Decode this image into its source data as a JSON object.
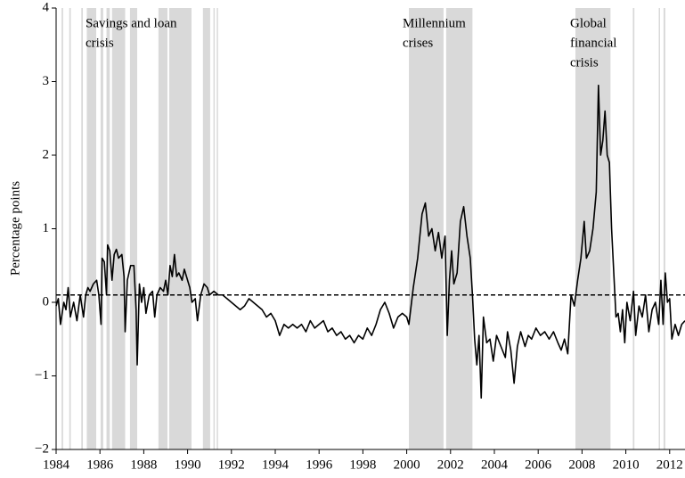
{
  "chart_data": {
    "type": "line",
    "y_label": "Percentage points",
    "annotations": [
      {
        "lines": [
          "Savings and loan",
          "crisis"
        ]
      },
      {
        "lines": [
          "Millennium",
          "crises"
        ]
      },
      {
        "lines": [
          "Global",
          "financial",
          "crisis"
        ]
      }
    ],
    "xlim": [
      1984,
      2012.7
    ],
    "xticks": [
      1984,
      1986,
      1988,
      1990,
      1992,
      1994,
      1996,
      1998,
      2000,
      2002,
      2004,
      2006,
      2008,
      2010,
      2012
    ],
    "ylim": [
      -2,
      4
    ],
    "yticks": [
      {
        "value": -2,
        "label": "−2"
      },
      {
        "value": -1,
        "label": "−1"
      },
      0,
      1,
      2,
      3,
      4
    ],
    "reference_line": 0.1,
    "shade_color": "#d9d9d9",
    "shaded_periods": [
      [
        1984.25,
        1984.32
      ],
      [
        1984.6,
        1984.67
      ],
      [
        1985.15,
        1985.22
      ],
      [
        1985.4,
        1985.83
      ],
      [
        1986.03,
        1986.15
      ],
      [
        1986.3,
        1986.45
      ],
      [
        1986.55,
        1987.15
      ],
      [
        1987.37,
        1987.7
      ],
      [
        1988.67,
        1989.08
      ],
      [
        1989.16,
        1990.18
      ],
      [
        1990.7,
        1991.03
      ],
      [
        1991.18,
        1991.24
      ],
      [
        1991.33,
        1991.39
      ],
      [
        2000.1,
        2001.68
      ],
      [
        2001.8,
        2003.0
      ],
      [
        2007.7,
        2009.3
      ],
      [
        2010.32,
        2010.39
      ],
      [
        2011.5,
        2011.56
      ],
      [
        2011.72,
        2011.8
      ]
    ],
    "series": [
      {
        "color": "#000000",
        "x": [
          1984.0,
          1984.1,
          1984.2,
          1984.35,
          1984.45,
          1984.55,
          1984.65,
          1984.8,
          1984.95,
          1985.1,
          1985.25,
          1985.35,
          1985.45,
          1985.55,
          1985.7,
          1985.85,
          1985.95,
          1986.05,
          1986.1,
          1986.2,
          1986.3,
          1986.35,
          1986.45,
          1986.55,
          1986.65,
          1986.75,
          1986.85,
          1987.0,
          1987.1,
          1987.15,
          1987.25,
          1987.4,
          1987.55,
          1987.65,
          1987.7,
          1987.8,
          1987.9,
          1988.0,
          1988.1,
          1988.25,
          1988.4,
          1988.5,
          1988.6,
          1988.75,
          1988.9,
          1989.0,
          1989.1,
          1989.2,
          1989.3,
          1989.4,
          1989.5,
          1989.6,
          1989.75,
          1989.85,
          1990.0,
          1990.1,
          1990.2,
          1990.35,
          1990.45,
          1990.6,
          1990.75,
          1990.9,
          1991.0,
          1991.2,
          1991.4,
          1991.6,
          1991.8,
          1992.0,
          1992.2,
          1992.4,
          1992.6,
          1992.8,
          1993.0,
          1993.2,
          1993.4,
          1993.6,
          1993.8,
          1994.0,
          1994.2,
          1994.4,
          1994.6,
          1994.8,
          1995.0,
          1995.2,
          1995.4,
          1995.6,
          1995.8,
          1996.0,
          1996.2,
          1996.4,
          1996.6,
          1996.8,
          1997.0,
          1997.2,
          1997.4,
          1997.6,
          1997.8,
          1998.0,
          1998.2,
          1998.4,
          1998.6,
          1998.8,
          1999.0,
          1999.2,
          1999.4,
          1999.6,
          1999.8,
          2000.0,
          2000.1,
          2000.3,
          2000.5,
          2000.7,
          2000.85,
          2001.0,
          2001.15,
          2001.3,
          2001.45,
          2001.6,
          2001.75,
          2001.85,
          2001.95,
          2002.05,
          2002.15,
          2002.3,
          2002.45,
          2002.6,
          2002.75,
          2002.9,
          2003.0,
          2003.1,
          2003.2,
          2003.3,
          2003.4,
          2003.5,
          2003.65,
          2003.8,
          2003.95,
          2004.1,
          2004.3,
          2004.5,
          2004.6,
          2004.75,
          2004.9,
          2005.05,
          2005.2,
          2005.4,
          2005.55,
          2005.7,
          2005.9,
          2006.1,
          2006.3,
          2006.5,
          2006.7,
          2006.9,
          2007.05,
          2007.2,
          2007.35,
          2007.5,
          2007.65,
          2007.8,
          2007.95,
          2008.1,
          2008.2,
          2008.35,
          2008.5,
          2008.65,
          2008.75,
          2008.85,
          2008.95,
          2009.05,
          2009.15,
          2009.25,
          2009.35,
          2009.45,
          2009.55,
          2009.65,
          2009.75,
          2009.85,
          2009.95,
          2010.05,
          2010.2,
          2010.35,
          2010.45,
          2010.6,
          2010.75,
          2010.9,
          2011.05,
          2011.2,
          2011.35,
          2011.5,
          2011.6,
          2011.7,
          2011.8,
          2011.9,
          2012.0,
          2012.1,
          2012.25,
          2012.4,
          2012.55,
          2012.7
        ],
        "values": [
          -0.05,
          0.05,
          -0.3,
          0.0,
          -0.1,
          0.2,
          -0.2,
          0.0,
          -0.25,
          0.1,
          -0.2,
          0.1,
          0.2,
          0.15,
          0.25,
          0.3,
          0.1,
          -0.3,
          0.6,
          0.55,
          0.1,
          0.78,
          0.7,
          0.3,
          0.65,
          0.72,
          0.6,
          0.65,
          0.35,
          -0.4,
          0.3,
          0.5,
          0.5,
          -0.1,
          -0.85,
          0.25,
          0.0,
          0.2,
          -0.15,
          0.1,
          0.15,
          -0.2,
          0.1,
          0.2,
          0.15,
          0.3,
          0.1,
          0.5,
          0.35,
          0.65,
          0.35,
          0.4,
          0.3,
          0.45,
          0.3,
          0.2,
          0.0,
          0.05,
          -0.25,
          0.1,
          0.25,
          0.2,
          0.1,
          0.15,
          0.1,
          0.1,
          0.05,
          0.0,
          -0.05,
          -0.1,
          -0.05,
          0.05,
          0.0,
          -0.05,
          -0.1,
          -0.2,
          -0.15,
          -0.25,
          -0.45,
          -0.3,
          -0.35,
          -0.3,
          -0.35,
          -0.3,
          -0.4,
          -0.25,
          -0.35,
          -0.3,
          -0.25,
          -0.4,
          -0.35,
          -0.45,
          -0.4,
          -0.5,
          -0.45,
          -0.55,
          -0.45,
          -0.5,
          -0.35,
          -0.45,
          -0.3,
          -0.1,
          0.0,
          -0.15,
          -0.35,
          -0.2,
          -0.15,
          -0.2,
          -0.3,
          0.2,
          0.6,
          1.2,
          1.35,
          0.9,
          1.0,
          0.7,
          0.95,
          0.6,
          0.9,
          -0.45,
          0.3,
          0.7,
          0.25,
          0.4,
          1.1,
          1.3,
          0.9,
          0.6,
          0.1,
          -0.5,
          -0.85,
          -0.45,
          -1.3,
          -0.2,
          -0.55,
          -0.5,
          -0.8,
          -0.45,
          -0.6,
          -0.75,
          -0.4,
          -0.65,
          -1.1,
          -0.6,
          -0.4,
          -0.6,
          -0.45,
          -0.5,
          -0.35,
          -0.45,
          -0.4,
          -0.5,
          -0.4,
          -0.55,
          -0.65,
          -0.5,
          -0.7,
          0.1,
          -0.05,
          0.3,
          0.6,
          1.1,
          0.6,
          0.7,
          1.0,
          1.5,
          2.95,
          2.0,
          2.2,
          2.6,
          2.0,
          1.9,
          1.0,
          0.4,
          -0.2,
          -0.15,
          -0.4,
          -0.1,
          -0.55,
          0.0,
          -0.25,
          0.15,
          -0.45,
          -0.05,
          -0.2,
          0.1,
          -0.4,
          -0.1,
          0.0,
          -0.3,
          0.3,
          -0.3,
          0.4,
          0.0,
          0.05,
          -0.5,
          -0.3,
          -0.45,
          -0.3,
          -0.25
        ]
      }
    ]
  }
}
